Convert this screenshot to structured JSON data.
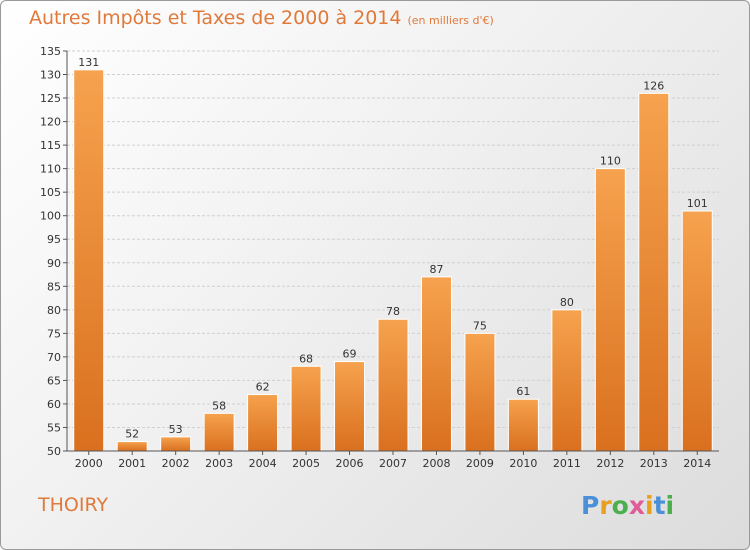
{
  "header": {
    "title": "Autres Impôts et Taxes de 2000 à 2014",
    "unit": "(en milliers d'€)"
  },
  "commune": "THOIRY",
  "logo": {
    "text": "Proxiti",
    "letter_colors": [
      "#4a90d9",
      "#e8a020",
      "#4cae4c",
      "#e05b9a",
      "#e8a020",
      "#4a90d9",
      "#4cae4c"
    ]
  },
  "colors": {
    "bar": "#f0923a",
    "accent": "#e0793a"
  },
  "chart_data": {
    "type": "bar",
    "title": "Autres Impôts et Taxes de 2000 à 2014",
    "xlabel": "",
    "ylabel": "",
    "categories": [
      "2000",
      "2001",
      "2002",
      "2003",
      "2004",
      "2005",
      "2006",
      "2007",
      "2008",
      "2009",
      "2010",
      "2011",
      "2012",
      "2013",
      "2014"
    ],
    "values": [
      131,
      52,
      53,
      58,
      62,
      68,
      69,
      78,
      87,
      75,
      61,
      80,
      110,
      126,
      101
    ],
    "ylim": [
      50,
      135
    ],
    "yticks": [
      50,
      55,
      60,
      65,
      70,
      75,
      80,
      85,
      90,
      95,
      100,
      105,
      110,
      115,
      120,
      125,
      130,
      135
    ],
    "grid": true,
    "legend": "none"
  }
}
